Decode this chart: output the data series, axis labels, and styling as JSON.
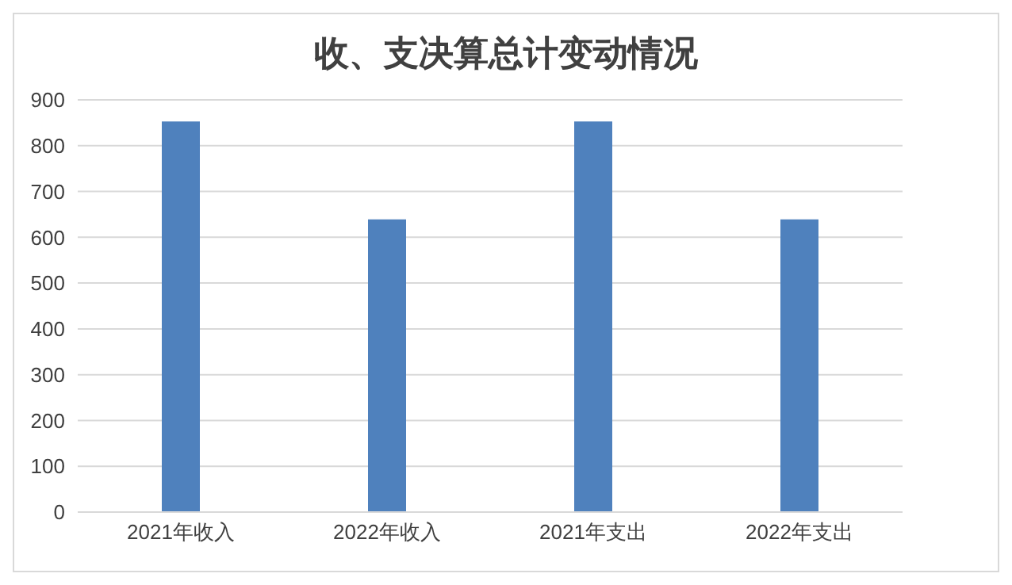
{
  "chart_data": {
    "type": "bar",
    "title": "收、支决算总计变动情况",
    "categories": [
      "2021年收入",
      "2022年收入",
      "2021年支出",
      "2022年支出"
    ],
    "values": [
      853,
      639,
      853,
      639
    ],
    "color": "#4f81bd",
    "ylim": [
      0,
      900
    ],
    "yticks": [
      0,
      100,
      200,
      300,
      400,
      500,
      600,
      700,
      800,
      900
    ],
    "grid": "y",
    "legend": false
  }
}
